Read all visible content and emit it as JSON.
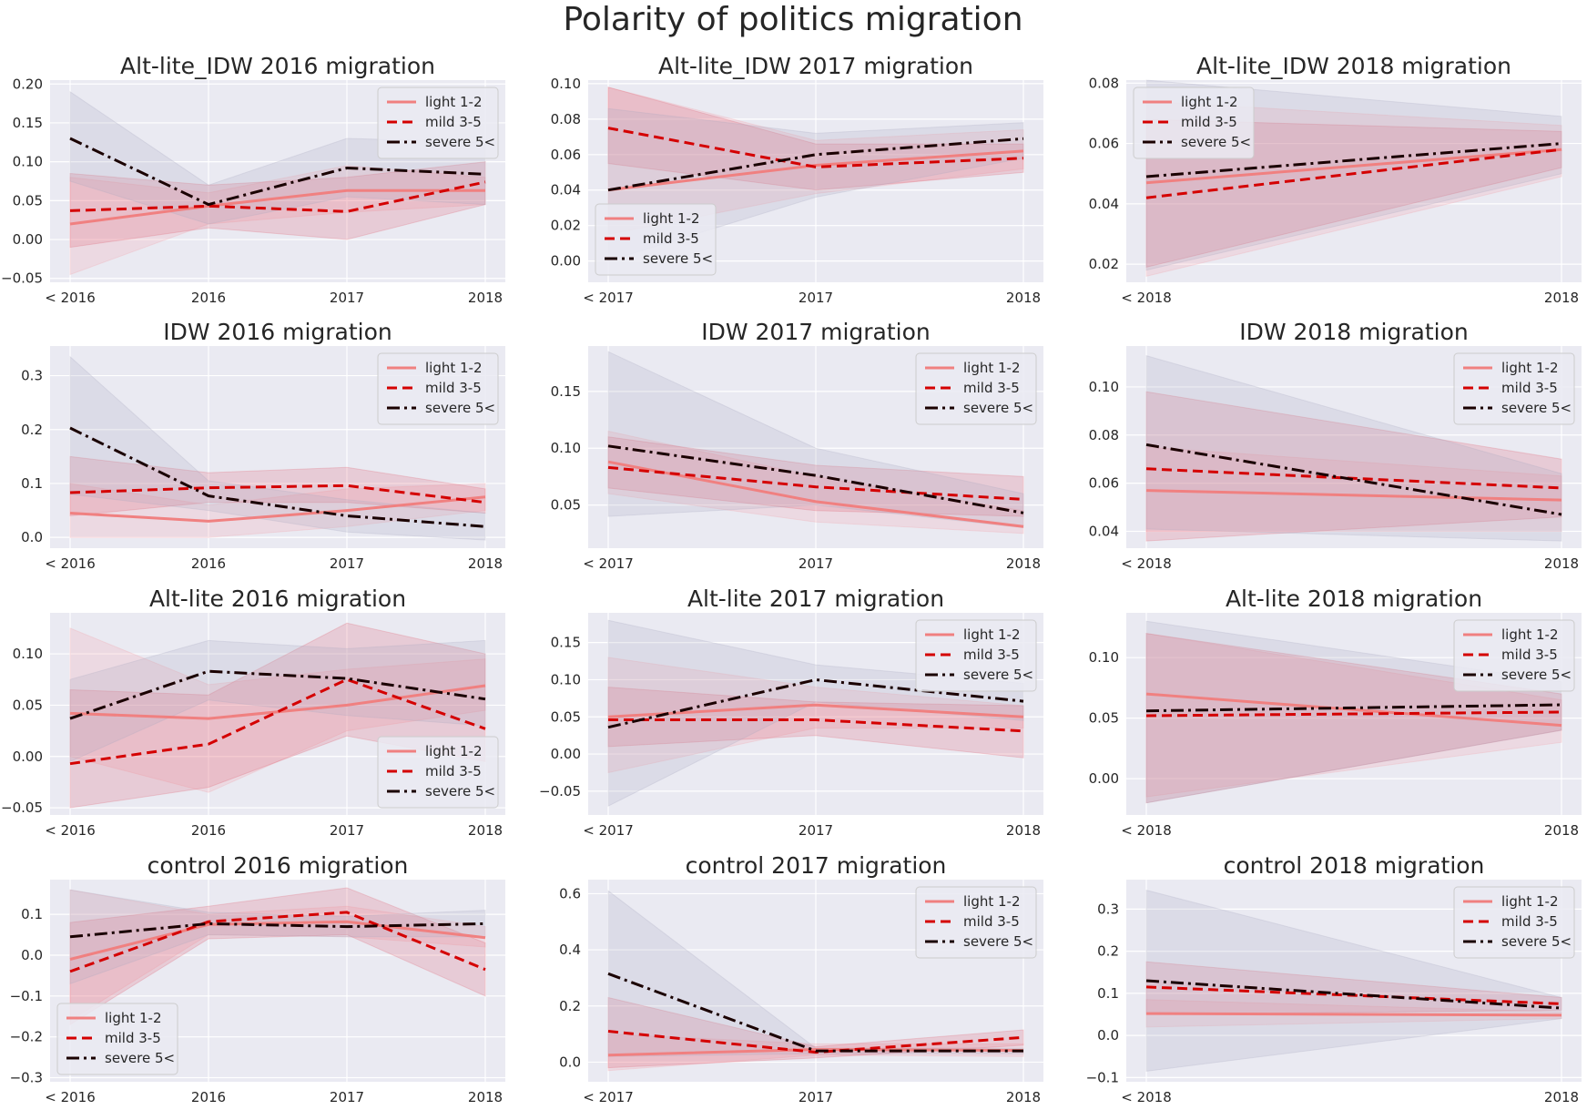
{
  "figure": {
    "title": "Polarity of politics migration"
  },
  "series_styles": [
    {
      "name": "light 1-2",
      "color": "#f08080",
      "dash": ""
    },
    {
      "name": "mild 3-5",
      "color": "#d40000",
      "dash": "11,6"
    },
    {
      "name": "severe 5<",
      "color": "#1a0000",
      "dash": "14,5,3,5"
    }
  ],
  "chart_data": [
    {
      "type": "line",
      "title": "Alt-lite_IDW 2016 migration",
      "categories": [
        "< 2016",
        "2016",
        "2017",
        "2018"
      ],
      "yticks": [
        -0.05,
        0,
        0.05,
        0.1,
        0.15,
        0.2
      ],
      "ylim": [
        -0.055,
        0.205
      ],
      "legend": "top-right",
      "series": [
        {
          "name": "light 1-2",
          "values": [
            0.02,
            0.043,
            0.063,
            0.063
          ],
          "lower": [
            -0.045,
            0.02,
            0.035,
            0.045
          ],
          "upper": [
            0.08,
            0.06,
            0.095,
            0.08
          ]
        },
        {
          "name": "mild 3-5",
          "values": [
            0.037,
            0.043,
            0.036,
            0.074
          ],
          "lower": [
            -0.01,
            0.015,
            0.0,
            0.045
          ],
          "upper": [
            0.085,
            0.07,
            0.08,
            0.1
          ]
        },
        {
          "name": "severe 5<",
          "values": [
            0.13,
            0.045,
            0.092,
            0.084
          ],
          "lower": [
            0.075,
            0.02,
            0.055,
            0.045
          ],
          "upper": [
            0.19,
            0.07,
            0.13,
            0.125
          ]
        }
      ]
    },
    {
      "type": "line",
      "title": "Alt-lite_IDW 2017 migration",
      "categories": [
        "< 2017",
        "2017",
        "2018"
      ],
      "yticks": [
        0,
        0.02,
        0.04,
        0.06,
        0.08,
        0.1
      ],
      "ylim": [
        -0.012,
        0.102
      ],
      "legend": "bottom-left",
      "series": [
        {
          "name": "light 1-2",
          "values": [
            0.04,
            0.054,
            0.062
          ],
          "lower": [
            0.015,
            0.038,
            0.052
          ],
          "upper": [
            0.098,
            0.068,
            0.074
          ]
        },
        {
          "name": "mild 3-5",
          "values": [
            0.075,
            0.053,
            0.058
          ],
          "lower": [
            0.055,
            0.04,
            0.05
          ],
          "upper": [
            0.098,
            0.066,
            0.066
          ]
        },
        {
          "name": "severe 5<",
          "values": [
            0.04,
            0.06,
            0.069
          ],
          "lower": [
            0.0,
            0.036,
            0.058
          ],
          "upper": [
            0.086,
            0.072,
            0.078
          ]
        }
      ]
    },
    {
      "type": "line",
      "title": "Alt-lite_IDW 2018 migration",
      "categories": [
        "< 2018",
        "2018"
      ],
      "yticks": [
        0.02,
        0.04,
        0.06,
        0.08
      ],
      "ylim": [
        0.014,
        0.081
      ],
      "legend": "top-left",
      "series": [
        {
          "name": "light 1-2",
          "values": [
            0.047,
            0.058
          ],
          "lower": [
            0.016,
            0.049
          ],
          "upper": [
            0.074,
            0.066
          ]
        },
        {
          "name": "mild 3-5",
          "values": [
            0.042,
            0.058
          ],
          "lower": [
            0.019,
            0.052
          ],
          "upper": [
            0.068,
            0.064
          ]
        },
        {
          "name": "severe 5<",
          "values": [
            0.049,
            0.06
          ],
          "lower": [
            0.018,
            0.05
          ],
          "upper": [
            0.081,
            0.069
          ]
        }
      ]
    },
    {
      "type": "line",
      "title": "IDW 2016 migration",
      "categories": [
        "< 2016",
        "2016",
        "2017",
        "2018"
      ],
      "yticks": [
        0,
        0.1,
        0.2,
        0.3
      ],
      "ylim": [
        -0.02,
        0.355
      ],
      "legend": "top-right",
      "series": [
        {
          "name": "light 1-2",
          "values": [
            0.045,
            0.03,
            0.05,
            0.075
          ],
          "lower": [
            0.0,
            0.0,
            0.02,
            0.05
          ],
          "upper": [
            0.1,
            0.06,
            0.09,
            0.1
          ]
        },
        {
          "name": "mild 3-5",
          "values": [
            0.083,
            0.092,
            0.096,
            0.065
          ],
          "lower": [
            0.04,
            0.065,
            0.065,
            0.045
          ],
          "upper": [
            0.15,
            0.12,
            0.13,
            0.09
          ]
        },
        {
          "name": "severe 5<",
          "values": [
            0.203,
            0.077,
            0.04,
            0.02
          ],
          "lower": [
            0.08,
            0.05,
            0.01,
            -0.005
          ],
          "upper": [
            0.335,
            0.105,
            0.07,
            0.045
          ]
        }
      ]
    },
    {
      "type": "line",
      "title": "IDW 2017 migration",
      "categories": [
        "< 2017",
        "2017",
        "2018"
      ],
      "yticks": [
        0.05,
        0.1,
        0.15
      ],
      "ylim": [
        0.012,
        0.19
      ],
      "legend": "top-right",
      "series": [
        {
          "name": "light 1-2",
          "values": [
            0.088,
            0.053,
            0.031
          ],
          "lower": [
            0.06,
            0.035,
            0.025
          ],
          "upper": [
            0.115,
            0.075,
            0.045
          ]
        },
        {
          "name": "mild 3-5",
          "values": [
            0.083,
            0.066,
            0.055
          ],
          "lower": [
            0.065,
            0.045,
            0.04
          ],
          "upper": [
            0.11,
            0.085,
            0.075
          ]
        },
        {
          "name": "severe 5<",
          "values": [
            0.102,
            0.076,
            0.043
          ],
          "lower": [
            0.04,
            0.05,
            0.03
          ],
          "upper": [
            0.185,
            0.1,
            0.06
          ]
        }
      ]
    },
    {
      "type": "line",
      "title": "IDW 2018 migration",
      "categories": [
        "< 2018",
        "2018"
      ],
      "yticks": [
        0.04,
        0.06,
        0.08,
        0.1
      ],
      "ylim": [
        0.033,
        0.117
      ],
      "legend": "top-right",
      "series": [
        {
          "name": "light 1-2",
          "values": [
            0.057,
            0.053
          ],
          "lower": [
            0.04,
            0.04
          ],
          "upper": [
            0.075,
            0.063
          ]
        },
        {
          "name": "mild 3-5",
          "values": [
            0.066,
            0.058
          ],
          "lower": [
            0.036,
            0.046
          ],
          "upper": [
            0.098,
            0.07
          ]
        },
        {
          "name": "severe 5<",
          "values": [
            0.076,
            0.047
          ],
          "lower": [
            0.041,
            0.036
          ],
          "upper": [
            0.113,
            0.064
          ]
        }
      ]
    },
    {
      "type": "line",
      "title": "Alt-lite 2016 migration",
      "categories": [
        "< 2016",
        "2016",
        "2017",
        "2018"
      ],
      "yticks": [
        -0.05,
        0,
        0.05,
        0.1
      ],
      "ylim": [
        -0.057,
        0.14
      ],
      "legend": "bottom-right",
      "series": [
        {
          "name": "light 1-2",
          "values": [
            0.042,
            0.037,
            0.05,
            0.069
          ],
          "lower": [
            0.0,
            -0.035,
            0.025,
            0.045
          ],
          "upper": [
            0.125,
            0.07,
            0.085,
            0.095
          ]
        },
        {
          "name": "mild 3-5",
          "values": [
            -0.007,
            0.012,
            0.075,
            0.027
          ],
          "lower": [
            -0.05,
            -0.03,
            0.02,
            -0.005
          ],
          "upper": [
            0.065,
            0.06,
            0.13,
            0.1
          ]
        },
        {
          "name": "severe 5<",
          "values": [
            0.037,
            0.083,
            0.076,
            0.056
          ],
          "lower": [
            -0.005,
            0.055,
            0.04,
            0.03
          ],
          "upper": [
            0.075,
            0.113,
            0.105,
            0.113
          ]
        }
      ]
    },
    {
      "type": "line",
      "title": "Alt-lite 2017 migration",
      "categories": [
        "< 2017",
        "2017",
        "2018"
      ],
      "yticks": [
        -0.05,
        0,
        0.05,
        0.1,
        0.15
      ],
      "ylim": [
        -0.082,
        0.19
      ],
      "legend": "top-right",
      "series": [
        {
          "name": "light 1-2",
          "values": [
            0.05,
            0.066,
            0.05
          ],
          "lower": [
            -0.025,
            0.035,
            0.035
          ],
          "upper": [
            0.13,
            0.09,
            0.065
          ]
        },
        {
          "name": "mild 3-5",
          "values": [
            0.046,
            0.046,
            0.031
          ],
          "lower": [
            0.01,
            0.025,
            -0.005
          ],
          "upper": [
            0.09,
            0.07,
            0.065
          ]
        },
        {
          "name": "severe 5<",
          "values": [
            0.036,
            0.1,
            0.071
          ],
          "lower": [
            -0.07,
            0.07,
            0.045
          ],
          "upper": [
            0.18,
            0.12,
            0.095
          ]
        }
      ]
    },
    {
      "type": "line",
      "title": "Alt-lite 2018 migration",
      "categories": [
        "< 2018",
        "2018"
      ],
      "yticks": [
        0,
        0.05,
        0.1
      ],
      "ylim": [
        -0.03,
        0.137
      ],
      "legend": "top-right",
      "series": [
        {
          "name": "light 1-2",
          "values": [
            0.07,
            0.044
          ],
          "lower": [
            -0.015,
            0.03
          ],
          "upper": [
            0.12,
            0.065
          ]
        },
        {
          "name": "mild 3-5",
          "values": [
            0.052,
            0.055
          ],
          "lower": [
            -0.02,
            0.04
          ],
          "upper": [
            0.12,
            0.07
          ]
        },
        {
          "name": "severe 5<",
          "values": [
            0.056,
            0.061
          ],
          "lower": [
            -0.02,
            0.04
          ],
          "upper": [
            0.13,
            0.08
          ]
        }
      ]
    },
    {
      "type": "line",
      "title": "control 2016 migration",
      "categories": [
        "< 2016",
        "2016",
        "2017",
        "2018"
      ],
      "yticks": [
        -0.3,
        -0.2,
        -0.1,
        0,
        0.1
      ],
      "ylim": [
        -0.31,
        0.185
      ],
      "legend": "bottom-left",
      "series": [
        {
          "name": "light 1-2",
          "values": [
            -0.01,
            0.075,
            0.082,
            0.043
          ],
          "lower": [
            -0.16,
            0.05,
            0.045,
            0.02
          ],
          "upper": [
            0.16,
            0.1,
            0.12,
            0.07
          ]
        },
        {
          "name": "mild 3-5",
          "values": [
            -0.04,
            0.082,
            0.105,
            -0.035
          ],
          "lower": [
            -0.17,
            0.04,
            0.05,
            -0.1
          ],
          "upper": [
            0.08,
            0.12,
            0.165,
            0.03
          ]
        },
        {
          "name": "severe 5<",
          "values": [
            0.045,
            0.077,
            0.07,
            0.077
          ],
          "lower": [
            -0.07,
            0.05,
            0.045,
            0.045
          ],
          "upper": [
            0.16,
            0.105,
            0.095,
            0.11
          ]
        }
      ]
    },
    {
      "type": "line",
      "title": "control 2017 migration",
      "categories": [
        "< 2017",
        "2017",
        "2018"
      ],
      "yticks": [
        0,
        0.2,
        0.4,
        0.6
      ],
      "ylim": [
        -0.07,
        0.65
      ],
      "legend": "top-right",
      "series": [
        {
          "name": "light 1-2",
          "values": [
            0.025,
            0.045,
            0.042
          ],
          "lower": [
            -0.03,
            0.025,
            0.02
          ],
          "upper": [
            0.1,
            0.065,
            0.065
          ]
        },
        {
          "name": "mild 3-5",
          "values": [
            0.11,
            0.035,
            0.088
          ],
          "lower": [
            -0.02,
            0.015,
            0.06
          ],
          "upper": [
            0.23,
            0.055,
            0.115
          ]
        },
        {
          "name": "severe 5<",
          "values": [
            0.315,
            0.04,
            0.04
          ],
          "lower": [
            0.02,
            0.03,
            0.03
          ],
          "upper": [
            0.61,
            0.05,
            0.05
          ]
        }
      ]
    },
    {
      "type": "line",
      "title": "control 2018 migration",
      "categories": [
        "< 2018",
        "2018"
      ],
      "yticks": [
        -0.1,
        0,
        0.1,
        0.2,
        0.3
      ],
      "ylim": [
        -0.11,
        0.37
      ],
      "legend": "top-right",
      "series": [
        {
          "name": "light 1-2",
          "values": [
            0.052,
            0.048
          ],
          "lower": [
            0.02,
            0.04
          ],
          "upper": [
            0.085,
            0.056
          ]
        },
        {
          "name": "mild 3-5",
          "values": [
            0.115,
            0.075
          ],
          "lower": [
            0.05,
            0.06
          ],
          "upper": [
            0.175,
            0.09
          ]
        },
        {
          "name": "severe 5<",
          "values": [
            0.13,
            0.065
          ],
          "lower": [
            -0.085,
            0.04
          ],
          "upper": [
            0.345,
            0.09
          ]
        }
      ]
    }
  ]
}
